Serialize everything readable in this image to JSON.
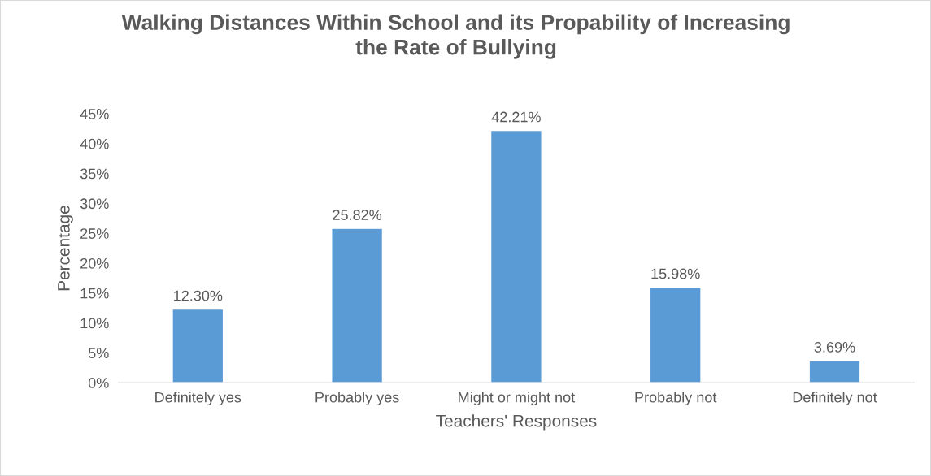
{
  "chart_data": {
    "type": "bar",
    "title": "Walking Distances Within School and its Propability of Increasing\nthe Rate of Bullying",
    "xlabel": "Teachers' Responses",
    "ylabel": "Percentage",
    "categories": [
      "Definitely yes",
      "Probably yes",
      "Might or might not",
      "Probably not",
      "Definitely not"
    ],
    "values": [
      12.3,
      25.82,
      42.21,
      15.98,
      3.69
    ],
    "value_labels": [
      "12.30%",
      "25.82%",
      "42.21%",
      "15.98%",
      "3.69%"
    ],
    "color": "#5b9bd5",
    "ylim": [
      0,
      45
    ],
    "yticks": [
      {
        "value": 0,
        "label": "0%"
      },
      {
        "value": 5,
        "label": "5%"
      },
      {
        "value": 10,
        "label": "10%"
      },
      {
        "value": 15,
        "label": "15%"
      },
      {
        "value": 20,
        "label": "20%"
      },
      {
        "value": 25,
        "label": "25%"
      },
      {
        "value": 30,
        "label": "30%"
      },
      {
        "value": 35,
        "label": "35%"
      },
      {
        "value": 40,
        "label": "40%"
      },
      {
        "value": 45,
        "label": "45%"
      }
    ],
    "grid": false,
    "legend": false
  }
}
